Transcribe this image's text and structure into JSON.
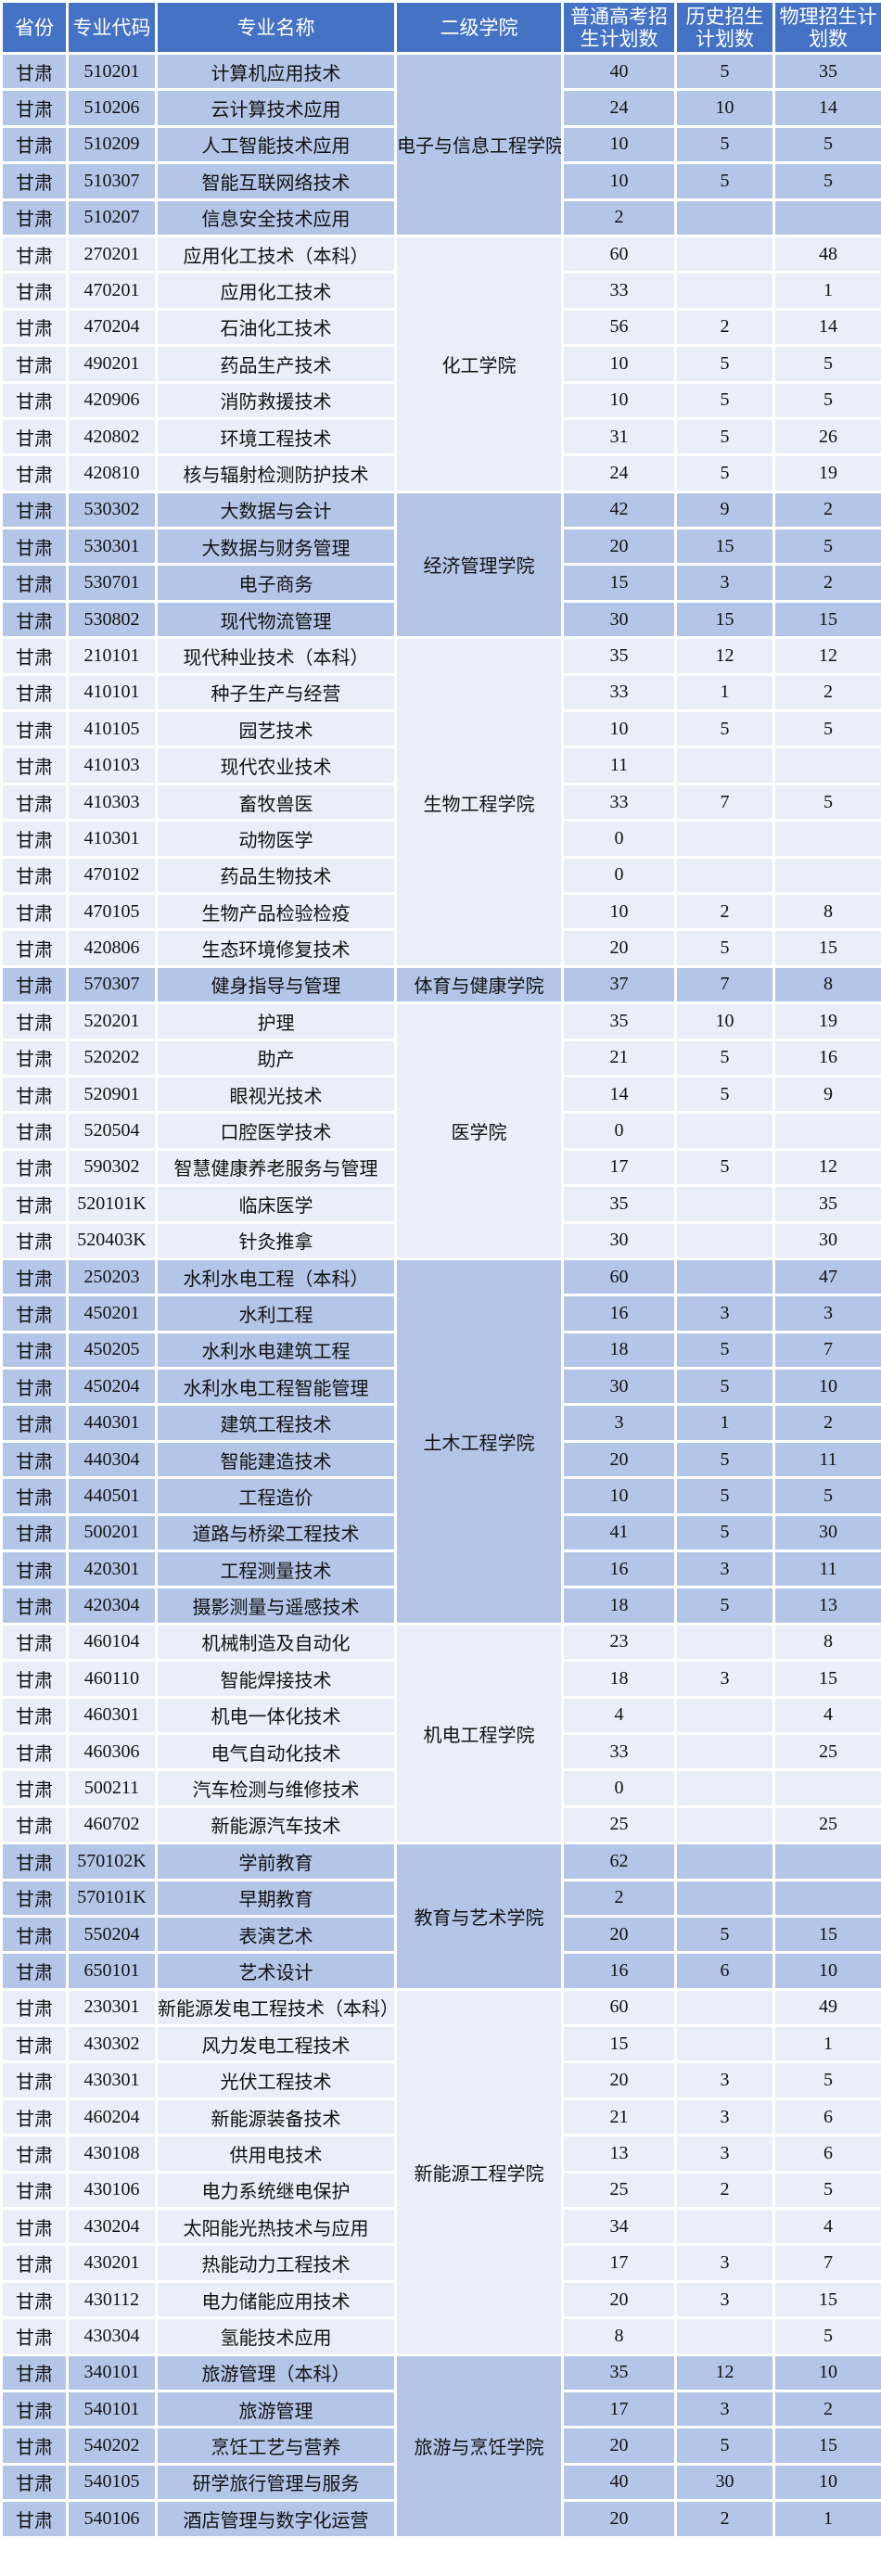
{
  "colors": {
    "header": "#4472C4",
    "band_dark": "#B4C6E7",
    "band_light": "#E9EEF8"
  },
  "headers": [
    "省份",
    "专业代码",
    "专业名称",
    "二级学院",
    "普通高考招生计划数",
    "历史招生计划数",
    "物理招生计划数"
  ],
  "province": "甘肃",
  "colleges": [
    {
      "name": "电子与信息工程学院",
      "rows": [
        [
          "510201",
          "计算机应用技术",
          "40",
          "5",
          "35"
        ],
        [
          "510206",
          "云计算技术应用",
          "24",
          "10",
          "14"
        ],
        [
          "510209",
          "人工智能技术应用",
          "10",
          "5",
          "5"
        ],
        [
          "510307",
          "智能互联网络技术",
          "10",
          "5",
          "5"
        ],
        [
          "510207",
          "信息安全技术应用",
          "2",
          "",
          ""
        ]
      ]
    },
    {
      "name": "化工学院",
      "rows": [
        [
          "270201",
          "应用化工技术（本科）",
          "60",
          "",
          "48"
        ],
        [
          "470201",
          "应用化工技术",
          "33",
          "",
          "1"
        ],
        [
          "470204",
          "石油化工技术",
          "56",
          "2",
          "14"
        ],
        [
          "490201",
          "药品生产技术",
          "10",
          "5",
          "5"
        ],
        [
          "420906",
          "消防救援技术",
          "10",
          "5",
          "5"
        ],
        [
          "420802",
          "环境工程技术",
          "31",
          "5",
          "26"
        ],
        [
          "420810",
          "核与辐射检测防护技术",
          "24",
          "5",
          "19"
        ]
      ]
    },
    {
      "name": "经济管理学院",
      "rows": [
        [
          "530302",
          "大数据与会计",
          "42",
          "9",
          "2"
        ],
        [
          "530301",
          "大数据与财务管理",
          "20",
          "15",
          "5"
        ],
        [
          "530701",
          "电子商务",
          "15",
          "3",
          "2"
        ],
        [
          "530802",
          "现代物流管理",
          "30",
          "15",
          "15"
        ]
      ]
    },
    {
      "name": "生物工程学院",
      "rows": [
        [
          "210101",
          "现代种业技术（本科）",
          "35",
          "12",
          "12"
        ],
        [
          "410101",
          "种子生产与经营",
          "33",
          "1",
          "2"
        ],
        [
          "410105",
          "园艺技术",
          "10",
          "5",
          "5"
        ],
        [
          "410103",
          "现代农业技术",
          "11",
          "",
          ""
        ],
        [
          "410303",
          "畜牧兽医",
          "33",
          "7",
          "5"
        ],
        [
          "410301",
          "动物医学",
          "0",
          "",
          ""
        ],
        [
          "470102",
          "药品生物技术",
          "0",
          "",
          ""
        ],
        [
          "470105",
          "生物产品检验检疫",
          "10",
          "2",
          "8"
        ],
        [
          "420806",
          "生态环境修复技术",
          "20",
          "5",
          "15"
        ]
      ]
    },
    {
      "name": "体育与健康学院",
      "rows": [
        [
          "570307",
          "健身指导与管理",
          "37",
          "7",
          "8"
        ]
      ]
    },
    {
      "name": "医学院",
      "rows": [
        [
          "520201",
          "护理",
          "35",
          "10",
          "19"
        ],
        [
          "520202",
          "助产",
          "21",
          "5",
          "16"
        ],
        [
          "520901",
          "眼视光技术",
          "14",
          "5",
          "9"
        ],
        [
          "520504",
          "口腔医学技术",
          "0",
          "",
          ""
        ],
        [
          "590302",
          "智慧健康养老服务与管理",
          "17",
          "5",
          "12"
        ],
        [
          "520101K",
          "临床医学",
          "35",
          "",
          "35"
        ],
        [
          "520403K",
          "针灸推拿",
          "30",
          "",
          "30"
        ]
      ]
    },
    {
      "name": "土木工程学院",
      "rows": [
        [
          "250203",
          "水利水电工程（本科）",
          "60",
          "",
          "47"
        ],
        [
          "450201",
          "水利工程",
          "16",
          "3",
          "3"
        ],
        [
          "450205",
          "水利水电建筑工程",
          "18",
          "5",
          "7"
        ],
        [
          "450204",
          "水利水电工程智能管理",
          "30",
          "5",
          "10"
        ],
        [
          "440301",
          "建筑工程技术",
          "3",
          "1",
          "2"
        ],
        [
          "440304",
          "智能建造技术",
          "20",
          "5",
          "11"
        ],
        [
          "440501",
          "工程造价",
          "10",
          "5",
          "5"
        ],
        [
          "500201",
          "道路与桥梁工程技术",
          "41",
          "5",
          "30"
        ],
        [
          "420301",
          "工程测量技术",
          "16",
          "3",
          "11"
        ],
        [
          "420304",
          "摄影测量与遥感技术",
          "18",
          "5",
          "13"
        ]
      ]
    },
    {
      "name": "机电工程学院",
      "rows": [
        [
          "460104",
          "机械制造及自动化",
          "23",
          "",
          "8"
        ],
        [
          "460110",
          "智能焊接技术",
          "18",
          "3",
          "15"
        ],
        [
          "460301",
          "机电一体化技术",
          "4",
          "",
          "4"
        ],
        [
          "460306",
          "电气自动化技术",
          "33",
          "",
          "25"
        ],
        [
          "500211",
          "汽车检测与维修技术",
          "0",
          "",
          ""
        ],
        [
          "460702",
          "新能源汽车技术",
          "25",
          "",
          "25"
        ]
      ]
    },
    {
      "name": "教育与艺术学院",
      "rows": [
        [
          "570102K",
          "学前教育",
          "62",
          "",
          ""
        ],
        [
          "570101K",
          "早期教育",
          "2",
          "",
          ""
        ],
        [
          "550204",
          "表演艺术",
          "20",
          "5",
          "15"
        ],
        [
          "650101",
          "艺术设计",
          "16",
          "6",
          "10"
        ]
      ]
    },
    {
      "name": "新能源工程学院",
      "rows": [
        [
          "230301",
          "新能源发电工程技术（本科）",
          "60",
          "",
          "49"
        ],
        [
          "430302",
          "风力发电工程技术",
          "15",
          "",
          "1"
        ],
        [
          "430301",
          "光伏工程技术",
          "20",
          "3",
          "5"
        ],
        [
          "460204",
          "新能源装备技术",
          "21",
          "3",
          "6"
        ],
        [
          "430108",
          "供用电技术",
          "13",
          "3",
          "6"
        ],
        [
          "430106",
          "电力系统继电保护",
          "25",
          "2",
          "5"
        ],
        [
          "430204",
          "太阳能光热技术与应用",
          "34",
          "",
          "4"
        ],
        [
          "430201",
          "热能动力工程技术",
          "17",
          "3",
          "7"
        ],
        [
          "430112",
          "电力储能应用技术",
          "20",
          "3",
          "15"
        ],
        [
          "430304",
          "氢能技术应用",
          "8",
          "",
          "5"
        ]
      ]
    },
    {
      "name": "旅游与烹饪学院",
      "rows": [
        [
          "340101",
          "旅游管理（本科）",
          "35",
          "12",
          "10"
        ],
        [
          "540101",
          "旅游管理",
          "17",
          "3",
          "2"
        ],
        [
          "540202",
          "烹饪工艺与营养",
          "20",
          "5",
          "15"
        ],
        [
          "540105",
          "研学旅行管理与服务",
          "40",
          "30",
          "10"
        ],
        [
          "540106",
          "酒店管理与数字化运营",
          "20",
          "2",
          "1"
        ]
      ]
    }
  ]
}
